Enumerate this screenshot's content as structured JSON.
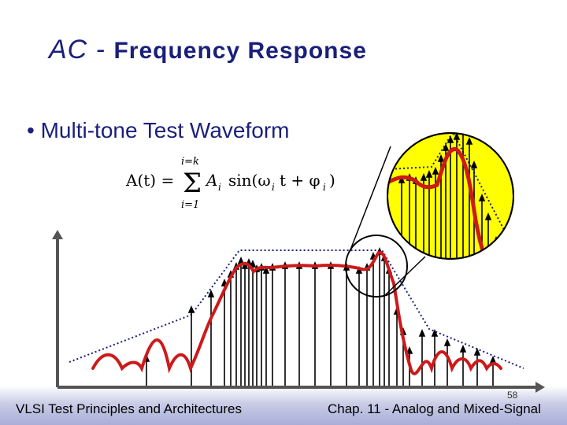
{
  "slide": {
    "title_main": "AC - ",
    "title_sub": "Frequency Response",
    "bullet": "Multi-tone Test Waveform",
    "footer_left": "VLSI Test Principles and Architectures",
    "footer_right": "Chap. 11 - Analog and Mixed-Signal",
    "page_number": "58"
  },
  "formula": {
    "lhs": "A(t) =",
    "sum_upper": "i=k",
    "sum_lower": "i=1",
    "sum_symbol": "Σ",
    "term": "A",
    "term_sub": "i",
    "sin": "sin(ω",
    "omega_sub": "i",
    "t_part": "t + φ",
    "phi_sub": "i",
    "close": ")"
  },
  "colors": {
    "title": "#1a1f7a",
    "response_curve": "#cc1a1a",
    "magnifier_fill": "#ffff00",
    "envelope": "#1a1f7a"
  }
}
